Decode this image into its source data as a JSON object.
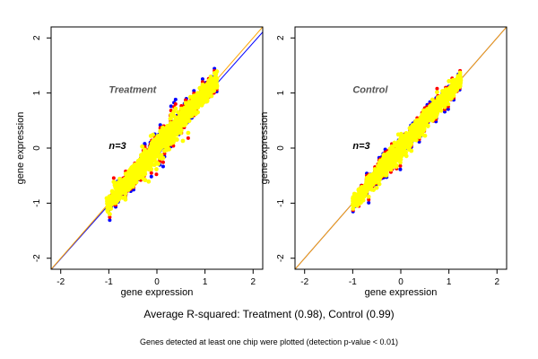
{
  "colors": {
    "background": "#ffffff",
    "all_points": "#0000ff",
    "flagged_points": "#ff0000",
    "detected_points": "#ffff00",
    "regression_line": "#0000ff",
    "identity_line": "#ffa500"
  },
  "captions": {
    "main": "Average R-squared: Treatment (0.98), Control (0.99)",
    "sub": "Genes detected at least one chip were plotted (detection p-value < 0.01)"
  },
  "chart_data": [
    {
      "type": "scatter",
      "title": "Treatment",
      "annotation": "n=3",
      "xlabel": "gene expression",
      "ylabel": "gene expression",
      "xlim": [
        -2.2,
        2.2
      ],
      "ylim": [
        -2.2,
        2.2
      ],
      "xticks": [
        -2,
        -1,
        0,
        1,
        2
      ],
      "yticks": [
        -2,
        -1,
        0,
        1,
        2
      ],
      "cloud": {
        "x_range": [
          -1.05,
          1.25
        ],
        "center": 0.0,
        "spread": 0.1
      },
      "lines": [
        {
          "color": "#0000ff",
          "intercept": -0.05,
          "slope": 0.98
        },
        {
          "color": "#ffa500",
          "intercept": 0.0,
          "slope": 1.0
        }
      ]
    },
    {
      "type": "scatter",
      "title": "Control",
      "annotation": "n=3",
      "xlabel": "gene expression",
      "ylabel": "gene expression",
      "xlim": [
        -2.2,
        2.2
      ],
      "ylim": [
        -2.2,
        2.2
      ],
      "xticks": [
        -2,
        -1,
        0,
        1,
        2
      ],
      "yticks": [
        -2,
        -1,
        0,
        1,
        2
      ],
      "cloud": {
        "x_range": [
          -1.0,
          1.25
        ],
        "center": -0.05,
        "spread": 0.08
      },
      "lines": [
        {
          "color": "#0000ff",
          "intercept": 0.0,
          "slope": 1.0
        },
        {
          "color": "#ffa500",
          "intercept": 0.0,
          "slope": 1.0
        }
      ]
    }
  ]
}
